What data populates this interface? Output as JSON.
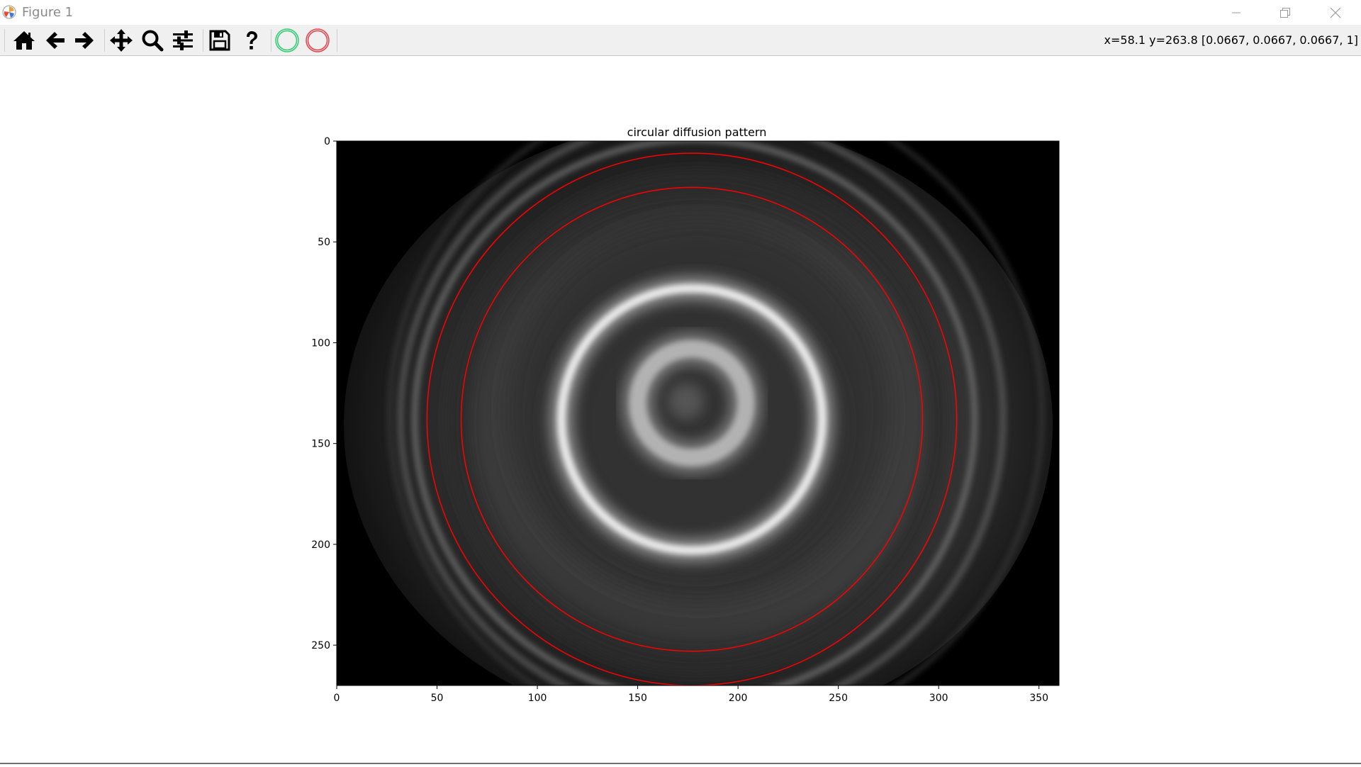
{
  "window": {
    "title": "Figure 1",
    "controls": [
      "minimize",
      "restore",
      "close"
    ]
  },
  "toolbar": {
    "buttons": [
      {
        "name": "home",
        "icon": "home-icon"
      },
      {
        "name": "back",
        "icon": "arrow-left-icon"
      },
      {
        "name": "forward",
        "icon": "arrow-right-icon"
      },
      {
        "name": "pan",
        "icon": "move-icon"
      },
      {
        "name": "zoom",
        "icon": "magnifier-icon"
      },
      {
        "name": "configure-subplots",
        "icon": "sliders-icon"
      },
      {
        "name": "save",
        "icon": "floppy-disk-icon"
      },
      {
        "name": "help",
        "icon": "question-mark-icon"
      },
      {
        "name": "circle-green",
        "icon": "green-circle-icon",
        "color": "#2ecc71"
      },
      {
        "name": "circle-red",
        "icon": "red-circle-icon",
        "color": "#e8424b"
      }
    ],
    "coords_text": "x=58.1 y=263.8 [0.0667, 0.0667, 0.0667, 1]"
  },
  "chart_data": {
    "type": "image",
    "title": "circular diffusion pattern",
    "colormap": "gray",
    "image_extent": {
      "x": [
        0,
        360
      ],
      "y": [
        270,
        0
      ]
    },
    "xticks": [
      0,
      50,
      100,
      150,
      200,
      250,
      300,
      350
    ],
    "yticks": [
      0,
      50,
      100,
      150,
      200,
      250
    ],
    "grid": false,
    "overlay_circles": [
      {
        "label": "",
        "center": [
          177,
          138
        ],
        "radius": 132,
        "color": "#ff0000"
      },
      {
        "label": "",
        "center": [
          177,
          138
        ],
        "radius": 115,
        "color": "#ff0000"
      }
    ],
    "bright_rings": [
      {
        "center": [
          177,
          138
        ],
        "radius": 65,
        "intensity": 0.95
      },
      {
        "center": [
          177,
          130
        ],
        "radius": 27,
        "intensity": 0.8
      }
    ]
  }
}
